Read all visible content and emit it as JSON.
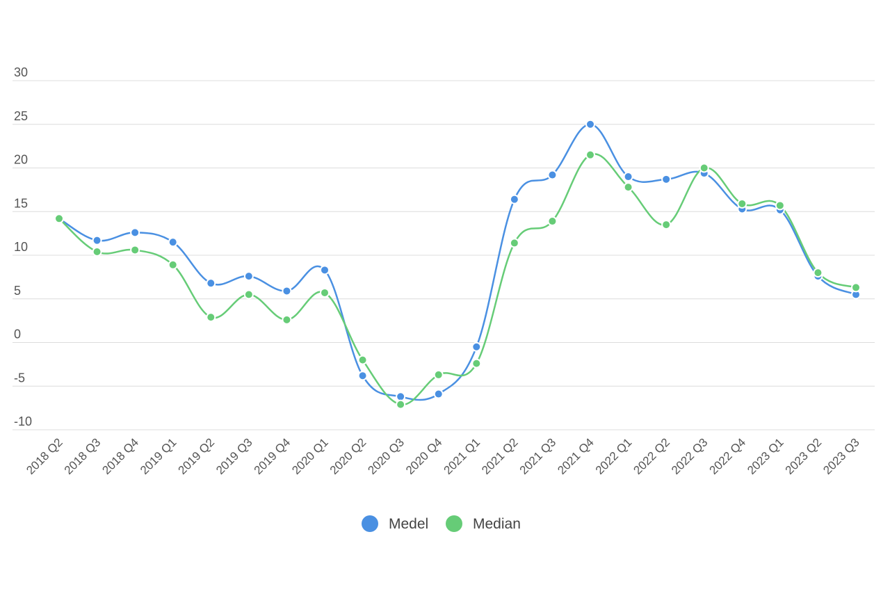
{
  "chart_data": {
    "type": "line",
    "categories": [
      "2018 Q2",
      "2018 Q3",
      "2018 Q4",
      "2019 Q1",
      "2019 Q2",
      "2019 Q3",
      "2019 Q4",
      "2020 Q1",
      "2020 Q2",
      "2020 Q3",
      "2020 Q4",
      "2021 Q1",
      "2021 Q2",
      "2021 Q3",
      "2021 Q4",
      "2022 Q1",
      "2022 Q2",
      "2022 Q3",
      "2022 Q4",
      "2023 Q1",
      "2023 Q2",
      "2023 Q3"
    ],
    "series": [
      {
        "name": "Medel",
        "color": "#4a90e2",
        "values": [
          14.2,
          11.7,
          12.6,
          11.5,
          6.8,
          7.6,
          5.9,
          8.3,
          -3.8,
          -6.2,
          -5.9,
          -0.5,
          16.4,
          19.2,
          25.0,
          19.0,
          18.7,
          19.4,
          15.3,
          15.2,
          7.6,
          5.5
        ]
      },
      {
        "name": "Median",
        "color": "#66cc77",
        "values": [
          14.2,
          10.4,
          10.6,
          8.9,
          2.9,
          5.5,
          2.6,
          5.7,
          -2.0,
          -7.1,
          -3.7,
          -2.4,
          11.4,
          13.9,
          21.5,
          17.8,
          13.5,
          20.0,
          15.9,
          15.7,
          8.0,
          6.3
        ]
      }
    ],
    "yticks": [
      "30",
      "25",
      "20",
      "15",
      "10",
      "5",
      "0",
      "-5",
      "-10"
    ],
    "ylim": [
      -10,
      30
    ],
    "xlabel": "",
    "ylabel": "",
    "grid": true,
    "legend": "bottom-center"
  }
}
